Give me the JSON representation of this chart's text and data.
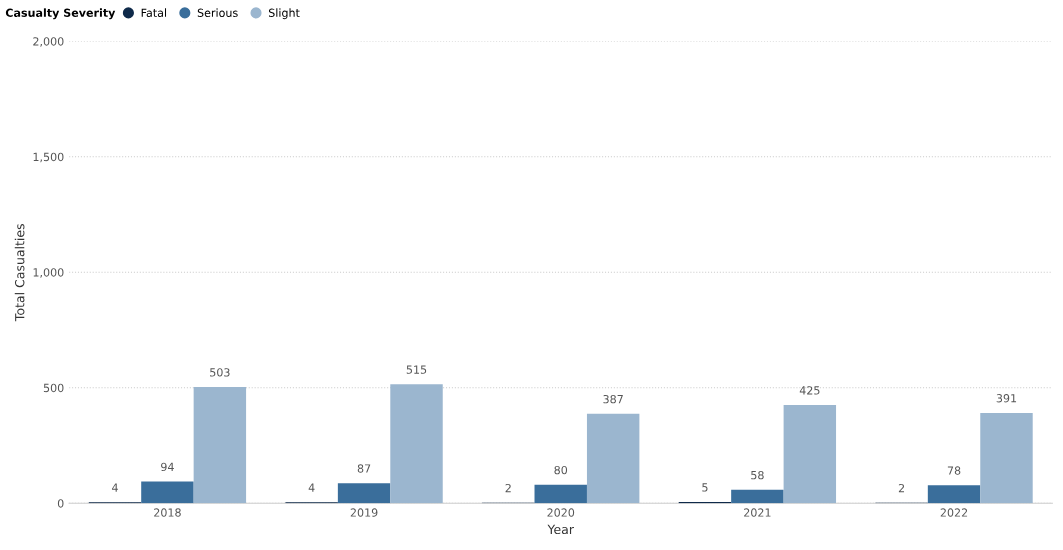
{
  "chart_data": {
    "type": "bar",
    "xlabel": "Year",
    "ylabel": "Total Casualties",
    "legend_title": "Casualty Severity",
    "categories": [
      "2018",
      "2019",
      "2020",
      "2021",
      "2022"
    ],
    "series": [
      {
        "name": "Fatal",
        "color": "#0f2a4a",
        "values": [
          4,
          4,
          2,
          5,
          2
        ]
      },
      {
        "name": "Serious",
        "color": "#3a6e9b",
        "values": [
          94,
          87,
          80,
          58,
          78
        ]
      },
      {
        "name": "Slight",
        "color": "#9bb6cf",
        "values": [
          503,
          515,
          387,
          425,
          391
        ]
      }
    ],
    "ylim": [
      0,
      2000
    ],
    "yticks": [
      {
        "value": 0,
        "label": "0"
      },
      {
        "value": 500,
        "label": "500"
      },
      {
        "value": 1000,
        "label": "1,000"
      },
      {
        "value": 1500,
        "label": "1,500"
      },
      {
        "value": 2000,
        "label": "2,000"
      }
    ],
    "grid": "y",
    "legend": "top left",
    "data_labels": true
  }
}
